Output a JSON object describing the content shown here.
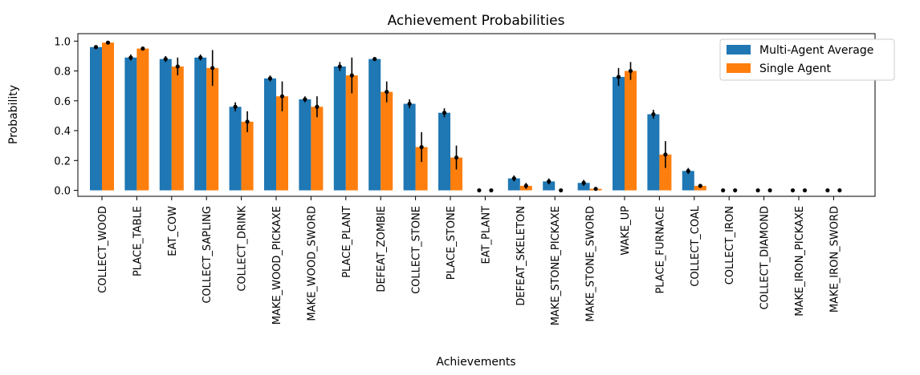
{
  "chart_data": {
    "type": "bar",
    "title": "Achievement Probabilities",
    "xlabel": "Achievements",
    "ylabel": "Probability",
    "ylim": [
      -0.04,
      1.05
    ],
    "yticks": [
      "0.0",
      "0.2",
      "0.4",
      "0.6",
      "0.8",
      "1.0"
    ],
    "ytick_values": [
      0,
      0.2,
      0.4,
      0.6,
      0.8,
      1.0
    ],
    "legend_position": "top-right",
    "categories": [
      "COLLECT_WOOD",
      "PLACE_TABLE",
      "EAT_COW",
      "COLLECT_SAPLING",
      "COLLECT_DRINK",
      "MAKE_WOOD_PICKAXE",
      "MAKE_WOOD_SWORD",
      "PLACE_PLANT",
      "DEFEAT_ZOMBIE",
      "COLLECT_STONE",
      "PLACE_STONE",
      "EAT_PLANT",
      "DEFEAT_SKELETON",
      "MAKE_STONE_PICKAXE",
      "MAKE_STONE_SWORD",
      "WAKE_UP",
      "PLACE_FURNACE",
      "COLLECT_COAL",
      "COLLECT_IRON",
      "COLLECT_DIAMOND",
      "MAKE_IRON_PICKAXE",
      "MAKE_IRON_SWORD"
    ],
    "series": [
      {
        "name": "Multi-Agent Average",
        "color": "#1f77b4",
        "values": [
          0.96,
          0.89,
          0.88,
          0.89,
          0.56,
          0.75,
          0.61,
          0.83,
          0.88,
          0.58,
          0.52,
          0.0,
          0.08,
          0.06,
          0.05,
          0.76,
          0.51,
          0.13,
          0.0,
          0.0,
          0.0,
          0.0
        ],
        "errors": [
          0.01,
          0.02,
          0.02,
          0.02,
          0.03,
          0.02,
          0.02,
          0.03,
          0.01,
          0.03,
          0.03,
          0.0,
          0.02,
          0.02,
          0.02,
          0.06,
          0.03,
          0.02,
          0.0,
          0.0,
          0.0,
          0.0
        ]
      },
      {
        "name": "Single Agent",
        "color": "#ff7f0e",
        "values": [
          0.99,
          0.95,
          0.83,
          0.82,
          0.46,
          0.63,
          0.56,
          0.77,
          0.66,
          0.29,
          0.22,
          0.0,
          0.03,
          0.0,
          0.01,
          0.8,
          0.24,
          0.03,
          0.0,
          0.0,
          0.0,
          0.0
        ],
        "errors": [
          0.01,
          0.01,
          0.06,
          0.12,
          0.07,
          0.1,
          0.07,
          0.12,
          0.07,
          0.1,
          0.08,
          0.0,
          0.02,
          0.0,
          0.0,
          0.06,
          0.09,
          0.01,
          0.0,
          0.0,
          0.0,
          0.0
        ]
      }
    ]
  }
}
